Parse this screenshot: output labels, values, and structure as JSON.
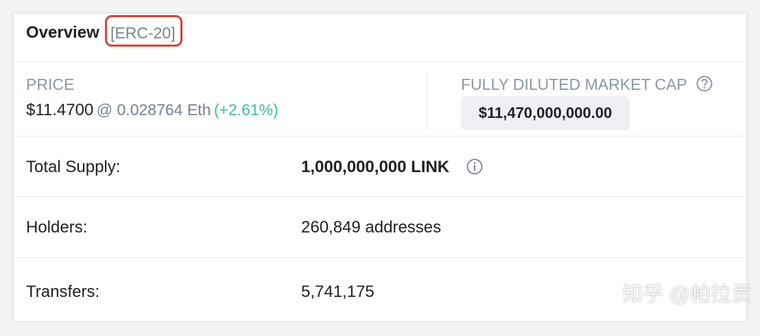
{
  "header": {
    "title": "Overview",
    "badge": "[ERC-20]"
  },
  "price": {
    "label": "PRICE",
    "value": "$11.4700",
    "eth": "@ 0.028764 Eth",
    "change": "(+2.61%)"
  },
  "market_cap": {
    "label": "FULLY DILUTED MARKET CAP",
    "value": "$11,470,000,000.00"
  },
  "rows": [
    {
      "label": "Total Supply:",
      "value": "1,000,000,000 LINK"
    },
    {
      "label": "Holders:",
      "value": "260,849 addresses"
    },
    {
      "label": "Transfers:",
      "value": "5,741,175"
    }
  ],
  "watermark": "知乎 @帕拉贡"
}
